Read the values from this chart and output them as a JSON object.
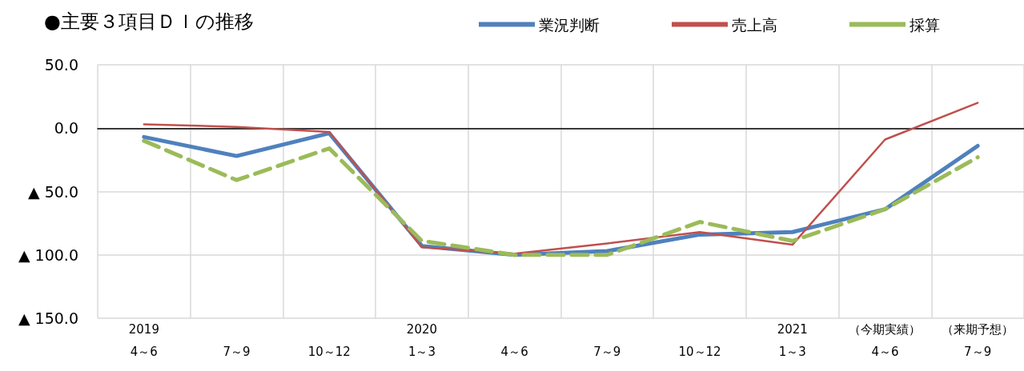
{
  "chart_data": {
    "type": "line",
    "title": "●主要３項目ＤＩの推移",
    "categories": [
      "2019\n4～6",
      "7～9",
      "10～12",
      "2020\n1～3",
      "4～6",
      "7～9",
      "10～12",
      "2021\n1～3",
      "（今期実績）\n4～6",
      "（来期予想）\n7～9"
    ],
    "series": [
      {
        "name": "業況判断",
        "color": "#4f81bd",
        "values": [
          -7,
          -22,
          -4,
          -93,
          -100,
          -97,
          -84,
          -82,
          -64,
          -14
        ]
      },
      {
        "name": "売上高",
        "color": "#c0504d",
        "values": [
          3,
          1,
          -3,
          -94,
          -99,
          -91,
          -82,
          -92,
          -9,
          20
        ]
      },
      {
        "name": "採算",
        "color": "#9bbb59",
        "line_style": "dashed",
        "values": [
          -10,
          -41,
          -16,
          -89,
          -100,
          -100,
          -74,
          -89,
          -64,
          -23
        ]
      }
    ],
    "ylim": [
      -150,
      50
    ],
    "yticks": [
      {
        "value": 50,
        "label": "50.0"
      },
      {
        "value": 0,
        "label": "0.0"
      },
      {
        "value": -50,
        "label": "▲ 50.0"
      },
      {
        "value": -100,
        "label": "▲ 100.0"
      },
      {
        "value": -150,
        "label": "▲ 150.0"
      }
    ],
    "grid": true,
    "legend": "top right",
    "marker": "none"
  }
}
